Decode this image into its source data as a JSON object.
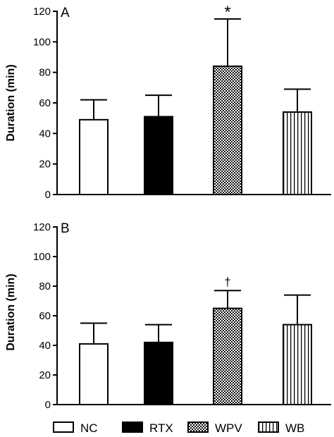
{
  "chart_data": [
    {
      "type": "bar",
      "panel": "A",
      "categories": [
        "NC",
        "RTX",
        "WPV",
        "WB"
      ],
      "values": [
        49,
        51,
        84,
        54
      ],
      "errors": [
        13,
        14,
        31,
        15
      ],
      "annotations": [
        "",
        "",
        "*",
        ""
      ],
      "ylabel": "Duration (min)",
      "ylim": [
        0,
        120
      ],
      "yticks": [
        "0",
        "20",
        "40",
        "60",
        "80",
        "100",
        "120"
      ]
    },
    {
      "type": "bar",
      "panel": "B",
      "categories": [
        "NC",
        "RTX",
        "WPV",
        "WB"
      ],
      "values": [
        41,
        42,
        65,
        54
      ],
      "errors": [
        14,
        12,
        12,
        20
      ],
      "annotations": [
        "",
        "",
        "†",
        ""
      ],
      "ylabel": "Duration (min)",
      "ylim": [
        0,
        120
      ],
      "yticks": [
        "0",
        "20",
        "40",
        "60",
        "80",
        "100",
        "120"
      ]
    }
  ],
  "legend": {
    "items": [
      {
        "label": "NC",
        "fill": "white"
      },
      {
        "label": "RTX",
        "fill": "black"
      },
      {
        "label": "WPV",
        "fill": "checker"
      },
      {
        "label": "WB",
        "fill": "vertical-stripes"
      }
    ]
  }
}
